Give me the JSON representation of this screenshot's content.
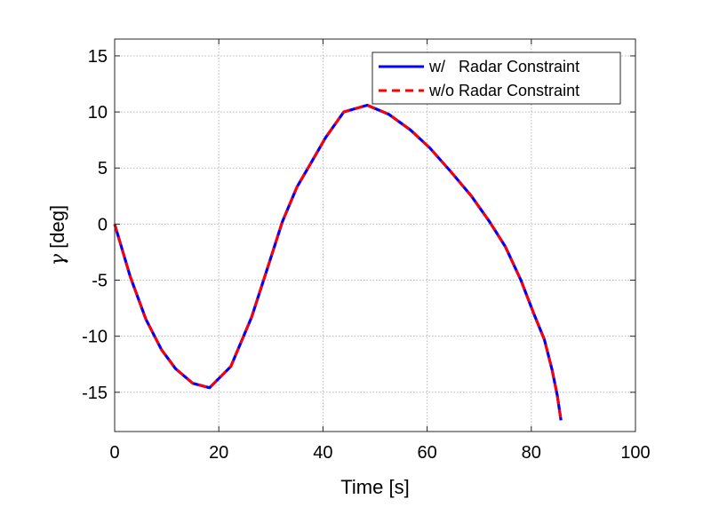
{
  "chart_data": {
    "type": "line",
    "xlabel": "Time [s]",
    "ylabel_symbol": "γ",
    "ylabel_unit": " [deg]",
    "xlim": [
      0,
      100
    ],
    "ylim": [
      -18.5,
      16.5
    ],
    "xticks": [
      0,
      20,
      40,
      60,
      80,
      100
    ],
    "xtick_labels": [
      "0",
      "20",
      "40",
      "60",
      "80",
      "100"
    ],
    "yticks": [
      -15,
      -10,
      -5,
      0,
      5,
      10,
      15
    ],
    "ytick_labels": [
      "-15",
      "-10",
      "-5",
      "0",
      "5",
      "10",
      "15"
    ],
    "grid": true,
    "legend_position": "top-right",
    "series": [
      {
        "name": "w/   Radar Constraint",
        "color": "#0000ff",
        "style": "solid",
        "x": [
          0,
          3,
          6,
          9,
          11.7,
          15,
          18.2,
          22.3,
          26.3,
          29.5,
          32.2,
          35,
          38,
          40.5,
          44,
          48.5,
          52.6,
          56.8,
          60.5,
          64.5,
          68.5,
          72,
          75,
          78,
          80.5,
          82.5,
          84,
          85,
          85.7
        ],
        "y": [
          0,
          -4.7,
          -8.5,
          -11.2,
          -12.9,
          -14.2,
          -14.6,
          -12.7,
          -8.3,
          -3.7,
          0.2,
          3.3,
          5.7,
          7.7,
          10,
          10.6,
          9.8,
          8.4,
          6.8,
          4.7,
          2.5,
          0.2,
          -2,
          -5,
          -8,
          -10.3,
          -13,
          -15.3,
          -17.5
        ]
      },
      {
        "name": "w/o Radar Constraint",
        "color": "#ff0000",
        "style": "dashed",
        "x": [
          0,
          3,
          6,
          9,
          11.7,
          15,
          18.2,
          22.3,
          26.3,
          29.5,
          32.2,
          35,
          38,
          40.5,
          44,
          48.5,
          52.6,
          56.8,
          60.5,
          64.5,
          68.5,
          72,
          75,
          78,
          80.5,
          82.5,
          84,
          85,
          85.7
        ],
        "y": [
          0,
          -4.7,
          -8.5,
          -11.2,
          -12.9,
          -14.2,
          -14.6,
          -12.7,
          -8.3,
          -3.7,
          0.2,
          3.3,
          5.7,
          7.7,
          10,
          10.6,
          9.8,
          8.4,
          6.8,
          4.7,
          2.5,
          0.2,
          -2,
          -5,
          -8,
          -10.3,
          -13,
          -15.3,
          -17.5
        ]
      }
    ]
  }
}
